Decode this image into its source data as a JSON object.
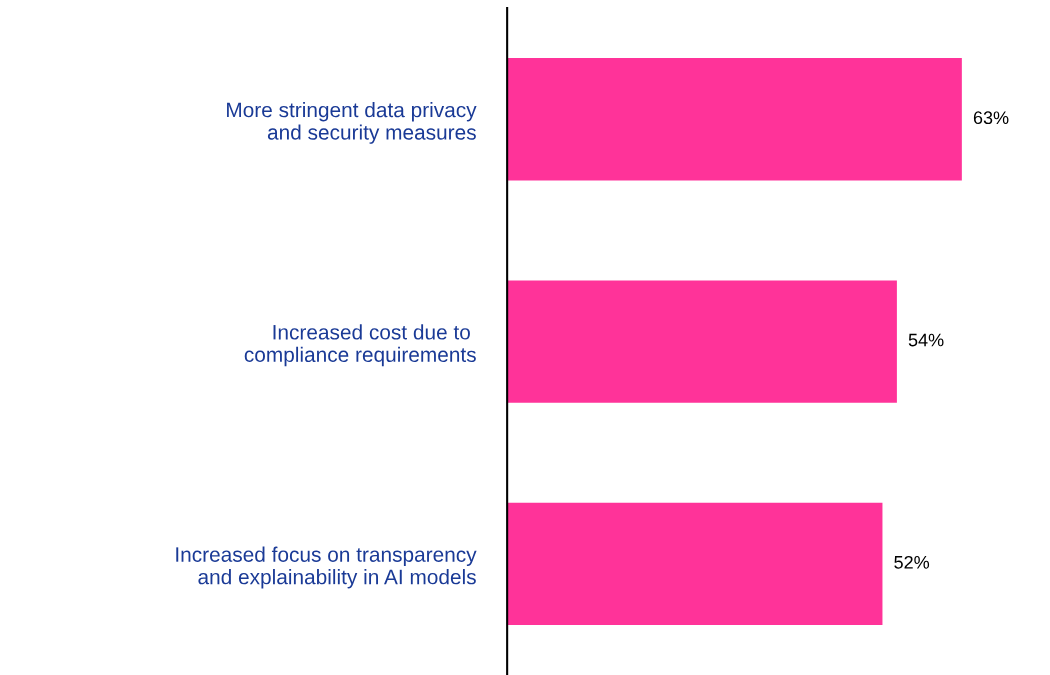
{
  "chart_data": {
    "type": "bar",
    "orientation": "horizontal",
    "categories": [
      "More stringent data privacy\nand security measures",
      "Increased cost due to \ncompliance requirements",
      "Increased focus on transparency\nand explainability in AI models"
    ],
    "values": [
      63,
      54,
      52
    ],
    "value_labels": [
      "63%",
      "54%",
      "52%"
    ],
    "color": "#ff3399",
    "tick_labels": "y",
    "grid": false,
    "legend": false
  }
}
